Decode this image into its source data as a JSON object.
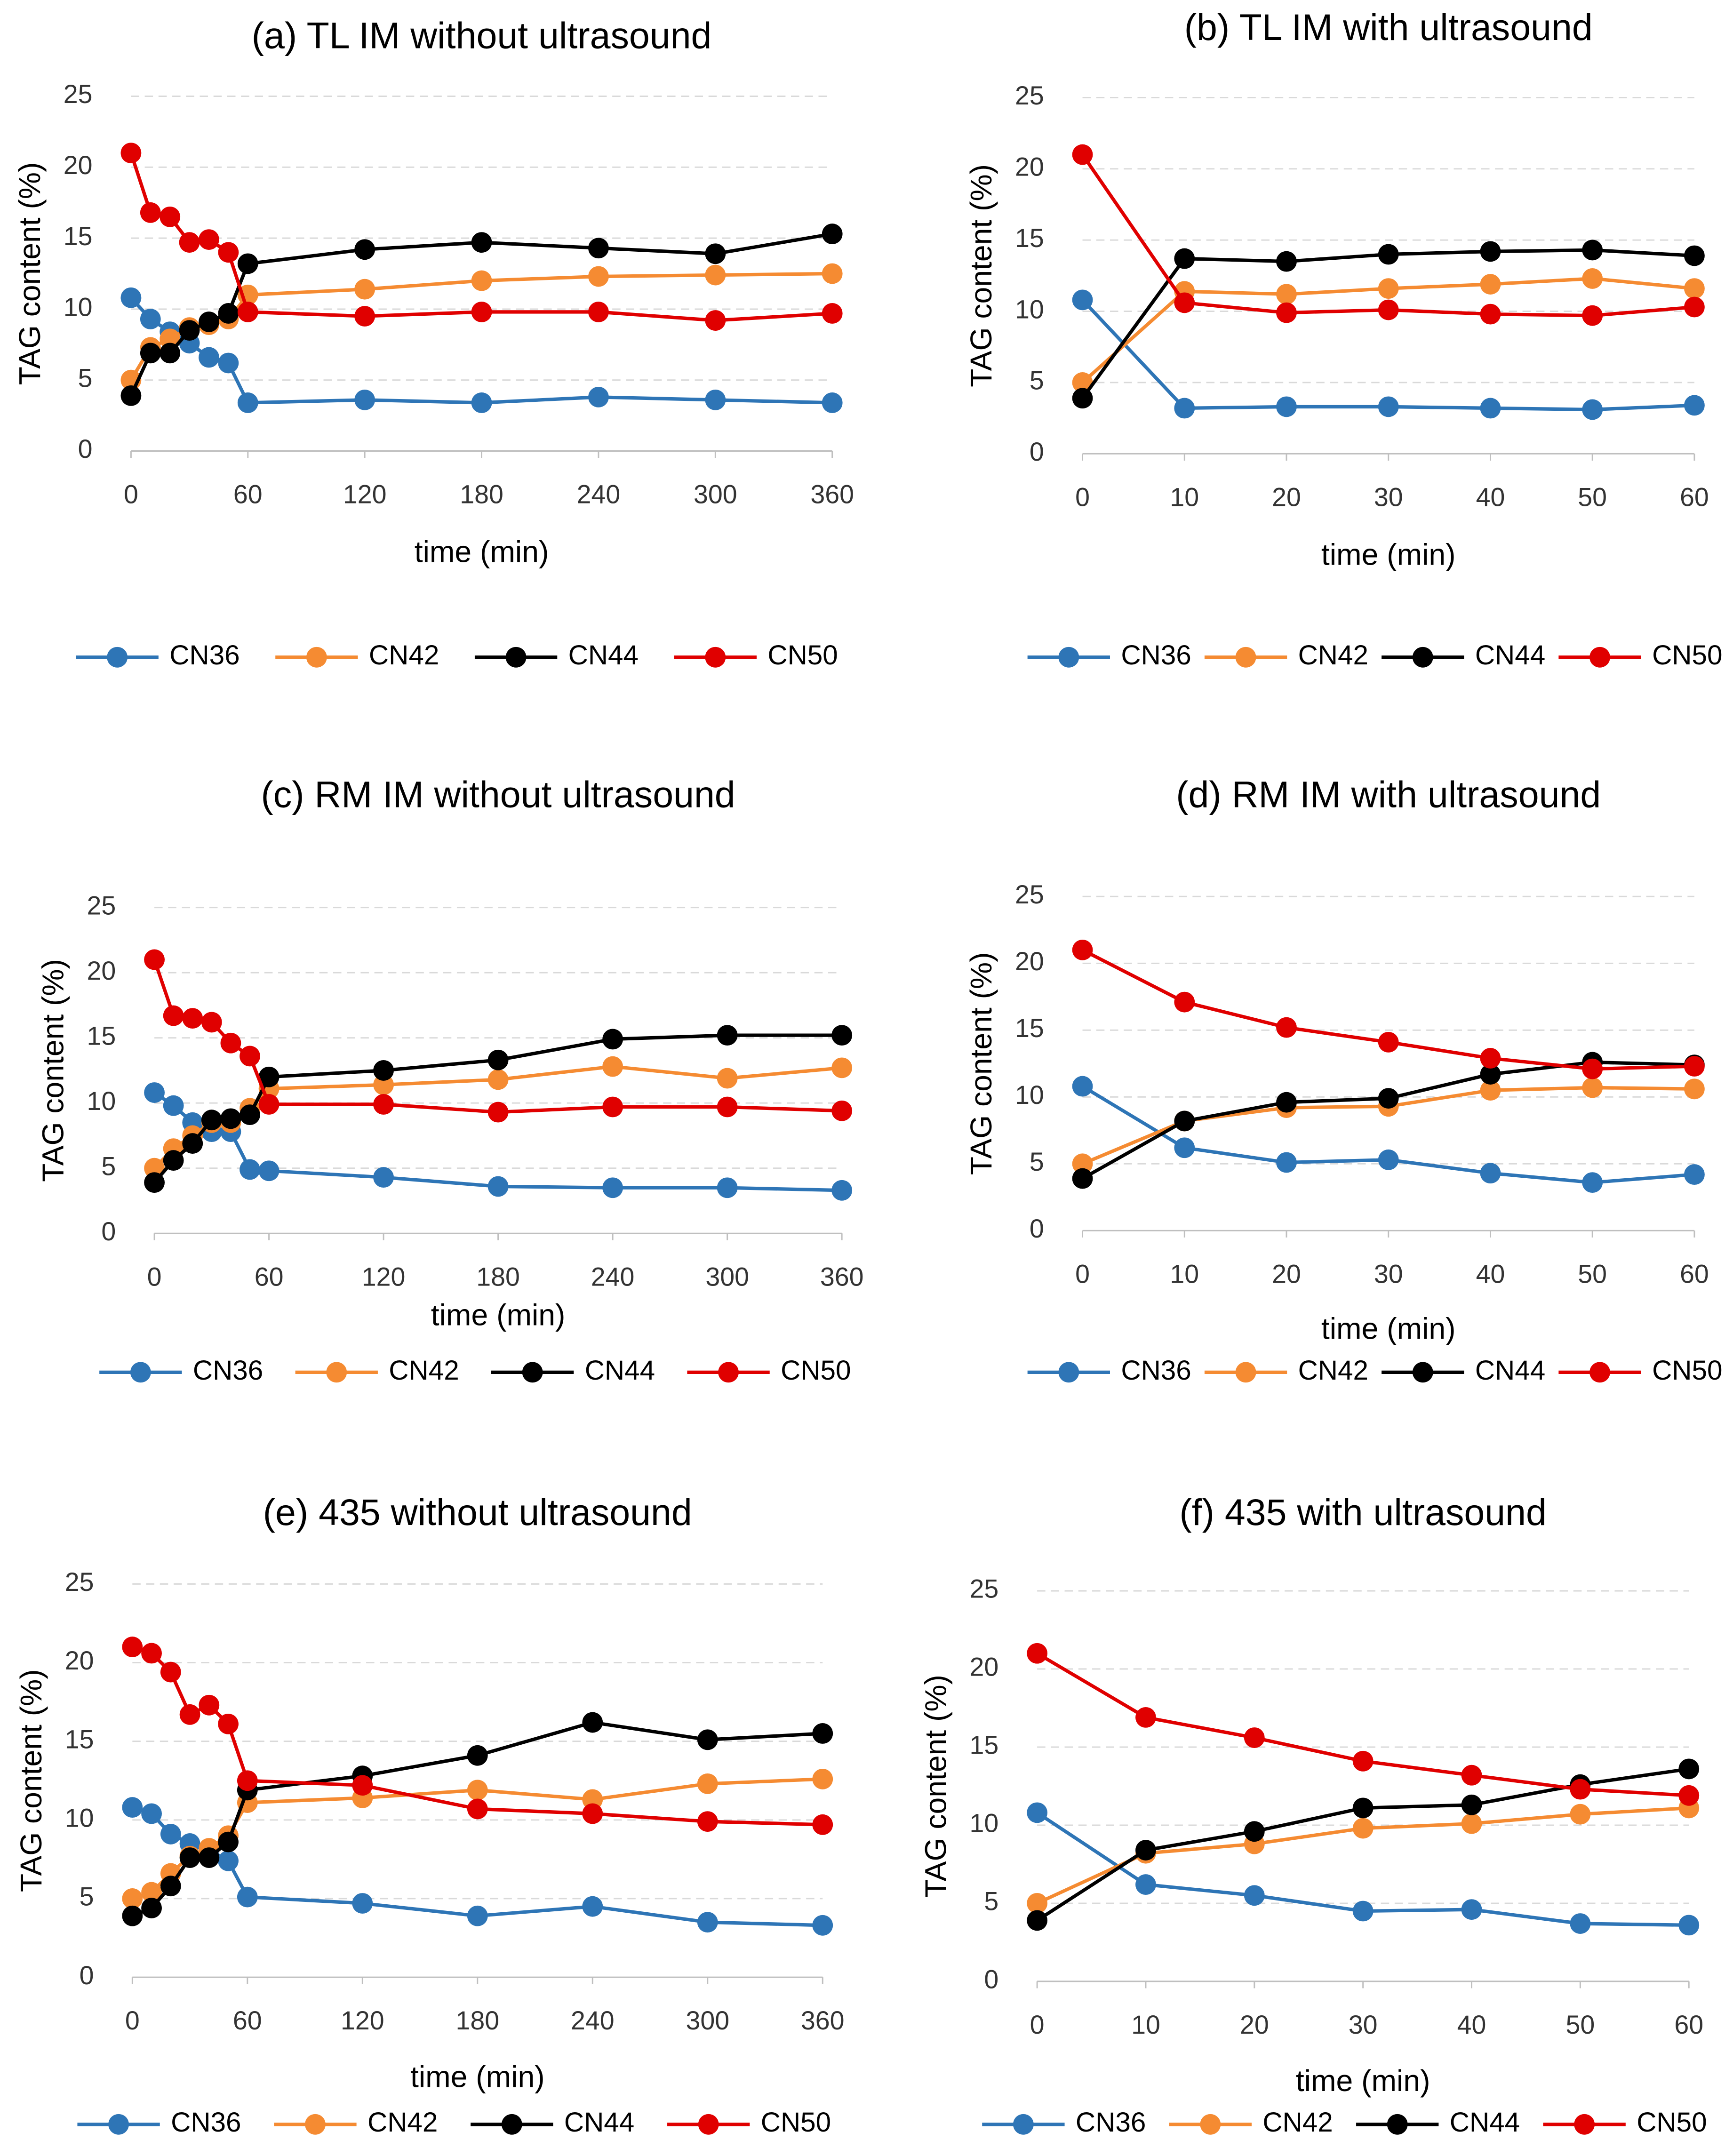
{
  "chart_data": [
    {
      "type": "line",
      "title": "(a) TL IM without ultrasound",
      "x_label": "time (min)",
      "y_label": "TAG content (%)",
      "x": [
        0,
        10,
        20,
        30,
        40,
        50,
        60,
        120,
        180,
        240,
        300,
        360
      ],
      "xlim": [
        0,
        360
      ],
      "xticks": [
        0,
        60,
        120,
        180,
        240,
        300,
        360
      ],
      "ylim": [
        0,
        25
      ],
      "yticks": [
        0,
        5,
        10,
        15,
        20,
        25
      ],
      "grid": true,
      "series": [
        {
          "name": "CN36",
          "color": "#2e75b6",
          "values": [
            10.8,
            9.3,
            8.4,
            7.6,
            6.6,
            6.2,
            3.4,
            3.6,
            3.4,
            3.8,
            3.6,
            3.4
          ]
        },
        {
          "name": "CN42",
          "color": "#f58b32",
          "values": [
            5.0,
            7.3,
            7.9,
            8.7,
            8.9,
            9.3,
            11.0,
            11.4,
            12.0,
            12.3,
            12.4,
            12.5
          ]
        },
        {
          "name": "CN44",
          "color": "#000000",
          "values": [
            3.9,
            6.9,
            6.9,
            8.5,
            9.1,
            9.7,
            13.2,
            14.2,
            14.7,
            14.3,
            13.9,
            15.3
          ]
        },
        {
          "name": "CN50",
          "color": "#e00000",
          "values": [
            21.0,
            16.8,
            16.5,
            14.7,
            14.9,
            14.0,
            9.8,
            9.5,
            9.8,
            9.8,
            9.2,
            9.7
          ]
        }
      ]
    },
    {
      "type": "line",
      "title": "(b) TL IM with ultrasound",
      "x_label": "time (min)",
      "y_label": "TAG content (%)",
      "x": [
        0,
        10,
        20,
        30,
        40,
        50,
        60
      ],
      "xlim": [
        0,
        60
      ],
      "xticks": [
        0,
        10,
        20,
        30,
        40,
        50,
        60
      ],
      "ylim": [
        0,
        25
      ],
      "yticks": [
        0,
        5,
        10,
        15,
        20,
        25
      ],
      "grid": true,
      "series": [
        {
          "name": "CN36",
          "color": "#2e75b6",
          "values": [
            10.8,
            3.2,
            3.3,
            3.3,
            3.2,
            3.1,
            3.4
          ]
        },
        {
          "name": "CN42",
          "color": "#f58b32",
          "values": [
            5.0,
            11.4,
            11.2,
            11.6,
            11.9,
            12.3,
            11.6
          ]
        },
        {
          "name": "CN44",
          "color": "#000000",
          "values": [
            3.9,
            13.7,
            13.5,
            14.0,
            14.2,
            14.3,
            13.9
          ]
        },
        {
          "name": "CN50",
          "color": "#e00000",
          "values": [
            21.0,
            10.6,
            9.9,
            10.1,
            9.8,
            9.7,
            10.3
          ]
        }
      ]
    },
    {
      "type": "line",
      "title": "(c) RM IM without ultrasound",
      "x_label": "time (min)",
      "y_label": "TAG content (%)",
      "x": [
        0,
        10,
        20,
        30,
        40,
        50,
        60,
        120,
        180,
        240,
        300,
        360
      ],
      "xlim": [
        0,
        360
      ],
      "xticks": [
        0,
        60,
        120,
        180,
        240,
        300,
        360
      ],
      "ylim": [
        0,
        25
      ],
      "yticks": [
        0,
        5,
        10,
        15,
        20,
        25
      ],
      "grid": true,
      "series": [
        {
          "name": "CN36",
          "color": "#2e75b6",
          "values": [
            10.8,
            9.8,
            8.5,
            7.8,
            7.8,
            4.9,
            4.8,
            4.3,
            3.6,
            3.5,
            3.5,
            3.3
          ]
        },
        {
          "name": "CN42",
          "color": "#f58b32",
          "values": [
            5.0,
            6.5,
            7.5,
            8.5,
            8.5,
            9.6,
            11.1,
            11.4,
            11.8,
            12.8,
            11.9,
            12.7
          ]
        },
        {
          "name": "CN44",
          "color": "#000000",
          "values": [
            3.9,
            5.6,
            6.9,
            8.7,
            8.8,
            9.1,
            12.0,
            12.5,
            13.3,
            14.9,
            15.2,
            15.2
          ]
        },
        {
          "name": "CN50",
          "color": "#e00000",
          "values": [
            21.0,
            16.7,
            16.5,
            16.2,
            14.6,
            13.6,
            9.9,
            9.9,
            9.3,
            9.7,
            9.7,
            9.4
          ]
        }
      ]
    },
    {
      "type": "line",
      "title": "(d) RM IM with ultrasound",
      "x_label": "time (min)",
      "y_label": "TAG content (%)",
      "x": [
        0,
        10,
        20,
        30,
        40,
        50,
        60
      ],
      "xlim": [
        0,
        60
      ],
      "xticks": [
        0,
        10,
        20,
        30,
        40,
        50,
        60
      ],
      "ylim": [
        0,
        25
      ],
      "yticks": [
        0,
        5,
        10,
        15,
        20,
        25
      ],
      "grid": true,
      "series": [
        {
          "name": "CN36",
          "color": "#2e75b6",
          "values": [
            10.8,
            6.2,
            5.1,
            5.3,
            4.3,
            3.6,
            4.2
          ]
        },
        {
          "name": "CN42",
          "color": "#f58b32",
          "values": [
            5.0,
            8.2,
            9.2,
            9.3,
            10.5,
            10.7,
            10.6
          ]
        },
        {
          "name": "CN44",
          "color": "#000000",
          "values": [
            3.9,
            8.2,
            9.6,
            9.9,
            11.7,
            12.6,
            12.4
          ]
        },
        {
          "name": "CN50",
          "color": "#e00000",
          "values": [
            21.0,
            17.1,
            15.2,
            14.1,
            12.9,
            12.1,
            12.3
          ]
        }
      ]
    },
    {
      "type": "line",
      "title": "(e) 435 without ultrasound",
      "x_label": "time (min)",
      "y_label": "TAG content (%)",
      "x": [
        0,
        10,
        20,
        30,
        40,
        50,
        60,
        120,
        180,
        240,
        300,
        360
      ],
      "xlim": [
        0,
        360
      ],
      "xticks": [
        0,
        60,
        120,
        180,
        240,
        300,
        360
      ],
      "ylim": [
        0,
        25
      ],
      "yticks": [
        0,
        5,
        10,
        15,
        20,
        25
      ],
      "grid": true,
      "series": [
        {
          "name": "CN36",
          "color": "#2e75b6",
          "values": [
            10.8,
            10.4,
            9.1,
            8.5,
            8.1,
            7.4,
            5.1,
            4.7,
            3.9,
            4.5,
            3.5,
            3.3
          ]
        },
        {
          "name": "CN42",
          "color": "#f58b32",
          "values": [
            5.0,
            5.4,
            6.6,
            7.7,
            8.2,
            9.0,
            11.1,
            11.4,
            11.9,
            11.3,
            12.3,
            12.6
          ]
        },
        {
          "name": "CN44",
          "color": "#000000",
          "values": [
            3.9,
            4.4,
            5.8,
            7.6,
            7.6,
            8.6,
            11.9,
            12.8,
            14.1,
            16.2,
            15.1,
            15.5
          ]
        },
        {
          "name": "CN50",
          "color": "#e00000",
          "values": [
            21.0,
            20.6,
            19.4,
            16.7,
            17.3,
            16.1,
            12.5,
            12.2,
            10.7,
            10.4,
            9.9,
            9.7
          ]
        }
      ]
    },
    {
      "type": "line",
      "title": "(f) 435 with ultrasound",
      "x_label": "time (min)",
      "y_label": "TAG content (%)",
      "x": [
        0,
        10,
        20,
        30,
        40,
        50,
        60
      ],
      "xlim": [
        0,
        60
      ],
      "xticks": [
        0,
        10,
        20,
        30,
        40,
        50,
        60
      ],
      "ylim": [
        0,
        25
      ],
      "yticks": [
        0,
        5,
        10,
        15,
        20,
        25
      ],
      "grid": true,
      "series": [
        {
          "name": "CN36",
          "color": "#2e75b6",
          "values": [
            10.8,
            6.2,
            5.5,
            4.5,
            4.6,
            3.7,
            3.6
          ]
        },
        {
          "name": "CN42",
          "color": "#f58b32",
          "values": [
            5.0,
            8.2,
            8.8,
            9.8,
            10.1,
            10.7,
            11.1
          ]
        },
        {
          "name": "CN44",
          "color": "#000000",
          "values": [
            3.9,
            8.4,
            9.6,
            11.1,
            11.3,
            12.6,
            13.6
          ]
        },
        {
          "name": "CN50",
          "color": "#e00000",
          "values": [
            21.0,
            16.9,
            15.6,
            14.1,
            13.2,
            12.3,
            11.9
          ]
        }
      ]
    }
  ]
}
